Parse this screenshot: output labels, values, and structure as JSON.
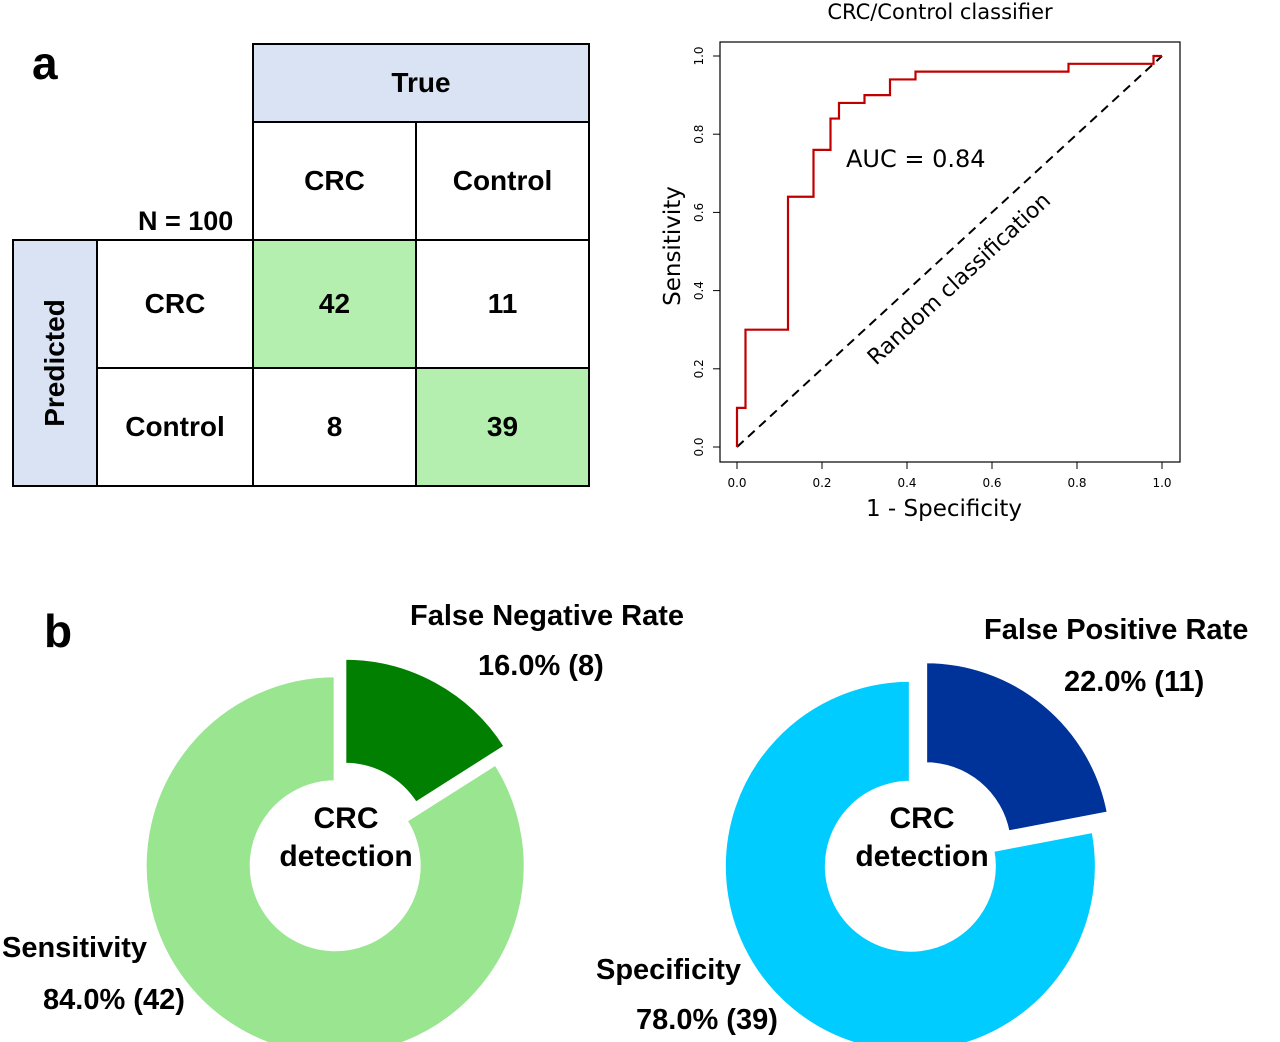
{
  "panel_a_label": "a",
  "panel_b_label": "b",
  "confusion_matrix": {
    "n_label": "N = 100",
    "true_header": "True",
    "predicted_header": "Predicted",
    "col_headers": [
      "CRC",
      "Control"
    ],
    "row_headers": [
      "CRC",
      "Control"
    ],
    "cells": [
      [
        "42",
        "11"
      ],
      [
        "8",
        "39"
      ]
    ]
  },
  "chart_data": [
    {
      "type": "line",
      "title": "CRC/Control classifier",
      "xlabel": "1 - Specificity",
      "ylabel": "Sensitivity",
      "xlim": [
        0,
        1
      ],
      "ylim": [
        0,
        1
      ],
      "xticks": [
        "0.0",
        "0.2",
        "0.4",
        "0.6",
        "0.8",
        "1.0"
      ],
      "yticks": [
        "0.0",
        "0.2",
        "0.4",
        "0.6",
        "0.8",
        "1.0"
      ],
      "annotation": "AUC = 0.84",
      "diagonal_label": "Random classification",
      "series": [
        {
          "color": "#c00000",
          "points": [
            [
              0,
              0
            ],
            [
              0,
              0.1
            ],
            [
              0.02,
              0.1
            ],
            [
              0.02,
              0.3
            ],
            [
              0.12,
              0.3
            ],
            [
              0.12,
              0.64
            ],
            [
              0.18,
              0.64
            ],
            [
              0.18,
              0.76
            ],
            [
              0.22,
              0.76
            ],
            [
              0.22,
              0.84
            ],
            [
              0.24,
              0.84
            ],
            [
              0.24,
              0.88
            ],
            [
              0.3,
              0.88
            ],
            [
              0.3,
              0.9
            ],
            [
              0.36,
              0.9
            ],
            [
              0.36,
              0.94
            ],
            [
              0.42,
              0.94
            ],
            [
              0.42,
              0.96
            ],
            [
              0.78,
              0.96
            ],
            [
              0.78,
              0.98
            ],
            [
              0.98,
              0.98
            ],
            [
              0.98,
              1.0
            ],
            [
              1.0,
              1.0
            ]
          ]
        }
      ]
    },
    {
      "type": "pie",
      "center_label": [
        "CRC",
        "detection"
      ],
      "slices": [
        {
          "name": "False Negative Rate",
          "value": 16.0,
          "count": 8,
          "color": "#007f00",
          "value_label": "16.0% (8)"
        },
        {
          "name": "Sensitivity",
          "value": 84.0,
          "count": 42,
          "color": "#99e590",
          "value_label": "84.0% (42)"
        }
      ]
    },
    {
      "type": "pie",
      "center_label": [
        "CRC",
        "detection"
      ],
      "slices": [
        {
          "name": "False Positive Rate",
          "value": 22.0,
          "count": 11,
          "color": "#003399",
          "value_label": "22.0% (11)"
        },
        {
          "name": "Specificity",
          "value": 78.0,
          "count": 39,
          "color": "#00ccff",
          "value_label": "78.0% (39)"
        }
      ]
    }
  ]
}
